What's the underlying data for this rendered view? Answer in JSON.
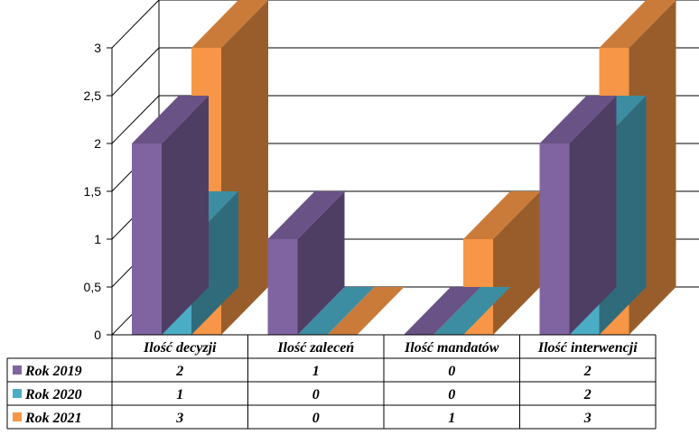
{
  "chart_data": {
    "type": "bar",
    "categories": [
      "Ilość decyzji",
      "Ilość zaleceń",
      "Ilość mandatów",
      "Ilość interwencji"
    ],
    "series": [
      {
        "name": "Rok 2019",
        "values": [
          2,
          1,
          0,
          2
        ],
        "color": "#8064A2"
      },
      {
        "name": "Rok 2020",
        "values": [
          1,
          0,
          0,
          2
        ],
        "color": "#4BACC6"
      },
      {
        "name": "Rok 2021",
        "values": [
          3,
          0,
          1,
          3
        ],
        "color": "#F79646"
      }
    ],
    "y_ticks": [
      "0",
      "0,5",
      "1",
      "1,5",
      "2",
      "2,5",
      "3"
    ],
    "ylim": [
      0,
      3
    ],
    "grid": true,
    "legend": "data-table-left"
  }
}
